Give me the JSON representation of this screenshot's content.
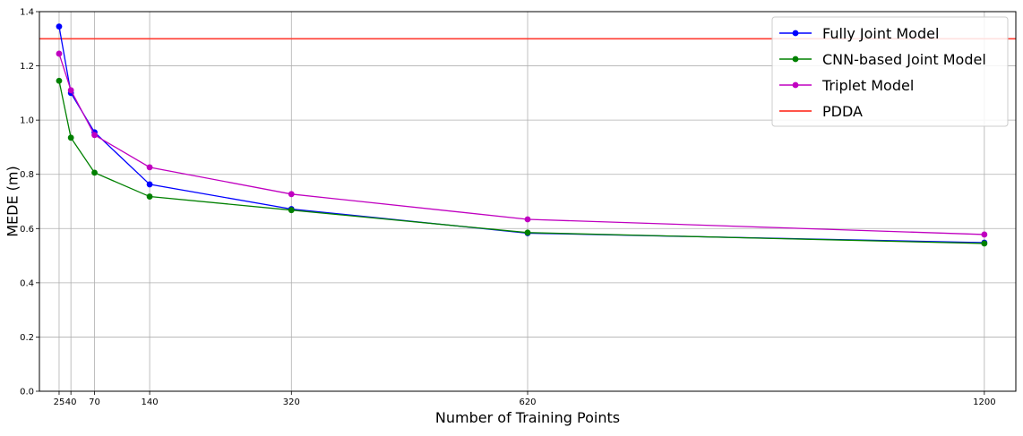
{
  "chart_data": {
    "type": "line",
    "title": "",
    "xlabel": "Number of Training Points",
    "ylabel": "MEDE (m)",
    "x": [
      25,
      40,
      70,
      140,
      320,
      620,
      1200
    ],
    "x_tick_labels": [
      "25",
      "40",
      "70",
      "140",
      "320",
      "620",
      "1200"
    ],
    "xlim": [
      0,
      1240
    ],
    "ylim": [
      0.0,
      1.4
    ],
    "y_ticks": [
      0.0,
      0.2,
      0.4,
      0.6,
      0.8,
      1.0,
      1.2,
      1.4
    ],
    "y_tick_labels": [
      "0.0",
      "0.2",
      "0.4",
      "0.6",
      "0.8",
      "1.0",
      "1.2",
      "1.4"
    ],
    "grid": true,
    "legend_position": "top-right",
    "series": [
      {
        "name": "Fully Joint Model",
        "color": "#0000ff",
        "marker": "circle",
        "values": [
          1.345,
          1.1,
          0.955,
          0.763,
          0.672,
          0.583,
          0.548
        ]
      },
      {
        "name": "CNN-based Joint Model",
        "color": "#008000",
        "marker": "circle",
        "values": [
          1.145,
          0.935,
          0.806,
          0.718,
          0.668,
          0.585,
          0.545
        ]
      },
      {
        "name": "Triplet Model",
        "color": "#c000c0",
        "marker": "circle",
        "values": [
          1.245,
          1.11,
          0.945,
          0.826,
          0.727,
          0.634,
          0.578
        ]
      }
    ],
    "reference_lines": [
      {
        "name": "PDDA",
        "color": "#ff3b30",
        "y": 1.3
      }
    ]
  }
}
